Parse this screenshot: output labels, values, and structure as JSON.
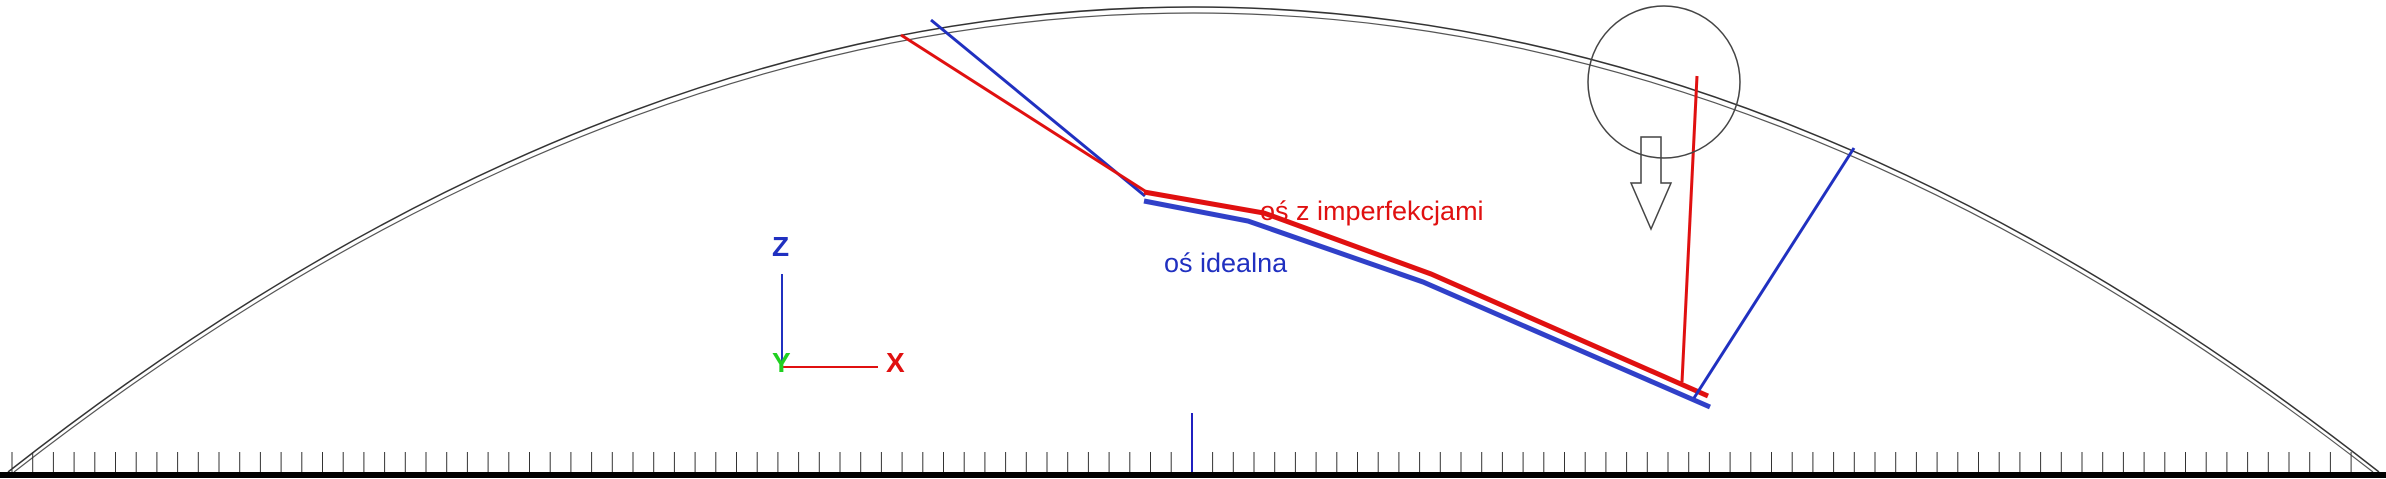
{
  "labels": {
    "imperfect_axis": "oś z imperfekcjami",
    "ideal_axis": "oś idealna"
  },
  "axes": {
    "z": "Z",
    "y": "Y",
    "x": "X"
  }
}
